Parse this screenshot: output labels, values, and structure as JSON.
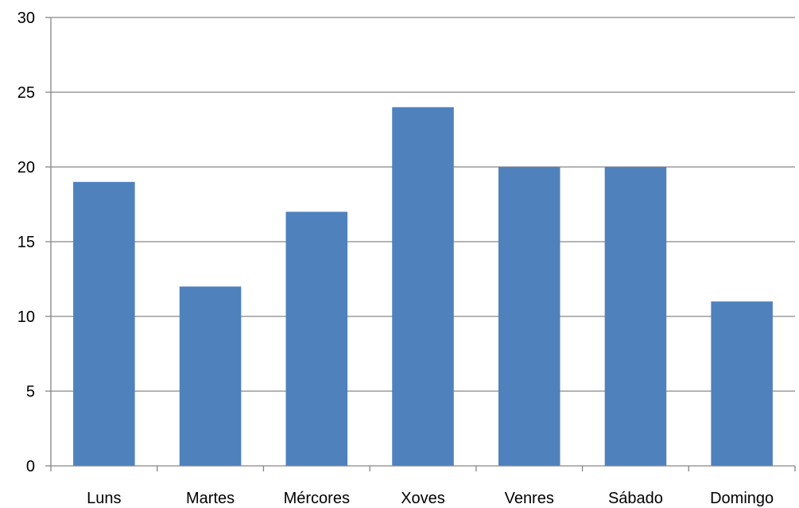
{
  "chart_data": {
    "type": "bar",
    "categories": [
      "Luns",
      "Martes",
      "Mércores",
      "Xoves",
      "Venres",
      "Sábado",
      "Domingo"
    ],
    "values": [
      19,
      12,
      17,
      24,
      20,
      20,
      11
    ],
    "title": "",
    "xlabel": "",
    "ylabel": "",
    "ylim": [
      0,
      30
    ],
    "yticks": [
      "0",
      "5",
      "10",
      "15",
      "20",
      "25",
      "30"
    ],
    "grid": true,
    "legend": "none",
    "bar_color": "#4F81BD",
    "grid_color": "#868686",
    "axis_color": "#868686"
  }
}
